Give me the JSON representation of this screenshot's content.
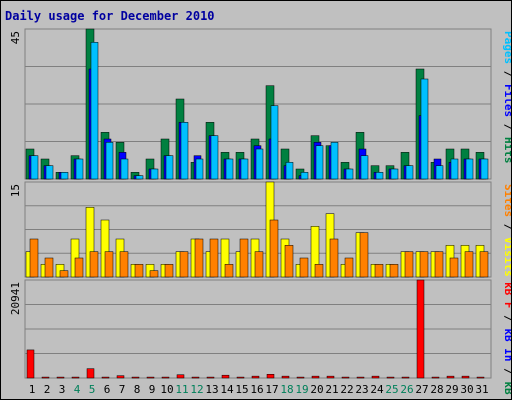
{
  "chart_data": {
    "type": "bar",
    "title": "Daily usage for December 2010",
    "days": [
      {
        "label": "1",
        "weekend": false
      },
      {
        "label": "2",
        "weekend": false
      },
      {
        "label": "3",
        "weekend": false
      },
      {
        "label": "4",
        "weekend": true
      },
      {
        "label": "5",
        "weekend": true
      },
      {
        "label": "6",
        "weekend": false
      },
      {
        "label": "7",
        "weekend": false
      },
      {
        "label": "8",
        "weekend": false
      },
      {
        "label": "9",
        "weekend": false
      },
      {
        "label": "10",
        "weekend": false
      },
      {
        "label": "11",
        "weekend": true
      },
      {
        "label": "12",
        "weekend": true
      },
      {
        "label": "13",
        "weekend": false
      },
      {
        "label": "14",
        "weekend": false
      },
      {
        "label": "15",
        "weekend": false
      },
      {
        "label": "16",
        "weekend": false
      },
      {
        "label": "17",
        "weekend": false
      },
      {
        "label": "18",
        "weekend": true
      },
      {
        "label": "19",
        "weekend": true
      },
      {
        "label": "20",
        "weekend": false
      },
      {
        "label": "21",
        "weekend": false
      },
      {
        "label": "22",
        "weekend": false
      },
      {
        "label": "23",
        "weekend": false
      },
      {
        "label": "24",
        "weekend": false
      },
      {
        "label": "25",
        "weekend": true
      },
      {
        "label": "26",
        "weekend": true
      },
      {
        "label": "27",
        "weekend": false
      },
      {
        "label": "28",
        "weekend": false
      },
      {
        "label": "29",
        "weekend": false
      },
      {
        "label": "30",
        "weekend": false
      },
      {
        "label": "31",
        "weekend": false
      }
    ],
    "panels": [
      {
        "id": "hits-files-pages",
        "max_label": "45",
        "ymax": 45,
        "ylegend": [
          {
            "text": "Pages",
            "color": "#00c0ff"
          },
          {
            "text": " / ",
            "color": "#000000"
          },
          {
            "text": "Files",
            "color": "#0000ff"
          },
          {
            "text": " / ",
            "color": "#000000"
          },
          {
            "text": "Hits",
            "color": "#008040"
          }
        ],
        "series": [
          {
            "key": "hits",
            "color": "#008040",
            "values": [
              9,
              6,
              2,
              7,
              45,
              14,
              11,
              2,
              6,
              12,
              24,
              5,
              17,
              8,
              8,
              12,
              28,
              9,
              3,
              13,
              10,
              5,
              14,
              4,
              4,
              8,
              33,
              5,
              9,
              9,
              8
            ]
          },
          {
            "key": "files",
            "color": "#0000ff",
            "values": [
              7,
              4,
              2,
              6,
              33,
              12,
              8,
              1,
              3,
              7,
              17,
              7,
              13,
              6,
              6,
              10,
              12,
              4,
              1,
              11,
              10,
              3,
              9,
              2,
              3,
              4,
              19,
              6,
              5,
              6,
              6
            ]
          },
          {
            "key": "pages",
            "color": "#00c0ff",
            "values": [
              7,
              4,
              2,
              6,
              41,
              11,
              6,
              1,
              3,
              7,
              17,
              6,
              13,
              6,
              6,
              9,
              22,
              5,
              2,
              10,
              11,
              3,
              7,
              2,
              3,
              4,
              30,
              4,
              6,
              6,
              6
            ]
          }
        ]
      },
      {
        "id": "visits-sites",
        "max_label": "15",
        "ymax": 15,
        "ylegend": [
          {
            "text": "Sites",
            "color": "#ff8000"
          },
          {
            "text": " / ",
            "color": "#000000"
          },
          {
            "text": "Visits",
            "color": "#ffff00"
          }
        ],
        "series": [
          {
            "key": "visits",
            "color": "#ffff00",
            "values": [
              4,
              2,
              2,
              6,
              11,
              9,
              6,
              2,
              2,
              2,
              4,
              6,
              4,
              6,
              4,
              6,
              15,
              6,
              2,
              8,
              10,
              2,
              7,
              2,
              2,
              4,
              4,
              4,
              5,
              5,
              5
            ]
          },
          {
            "key": "sites",
            "color": "#ff8000",
            "values": [
              6,
              3,
              1,
              3,
              4,
              4,
              4,
              2,
              1,
              2,
              4,
              6,
              6,
              2,
              6,
              4,
              9,
              5,
              3,
              2,
              6,
              3,
              7,
              2,
              2,
              4,
              4,
              4,
              3,
              4,
              4
            ]
          }
        ]
      },
      {
        "id": "kbytes",
        "max_label": "20941",
        "ymax": 20941,
        "ylegend": [
          {
            "text": "kB F",
            "color": "#ff0000"
          },
          {
            "text": " / ",
            "color": "#000000"
          },
          {
            "text": "kB In",
            "color": "#0000ff"
          },
          {
            "text": " / ",
            "color": "#000000"
          },
          {
            "text": "kB Out",
            "color": "#008040"
          }
        ],
        "series": [
          {
            "key": "kbf",
            "color": "#ff0000",
            "values": [
              6000,
              200,
              200,
              200,
              2000,
              200,
              500,
              200,
              200,
              200,
              700,
              200,
              200,
              600,
              200,
              400,
              800,
              400,
              200,
              400,
              400,
              200,
              200,
              400,
              200,
              200,
              20941,
              200,
              400,
              400,
              200
            ]
          }
        ]
      }
    ]
  }
}
